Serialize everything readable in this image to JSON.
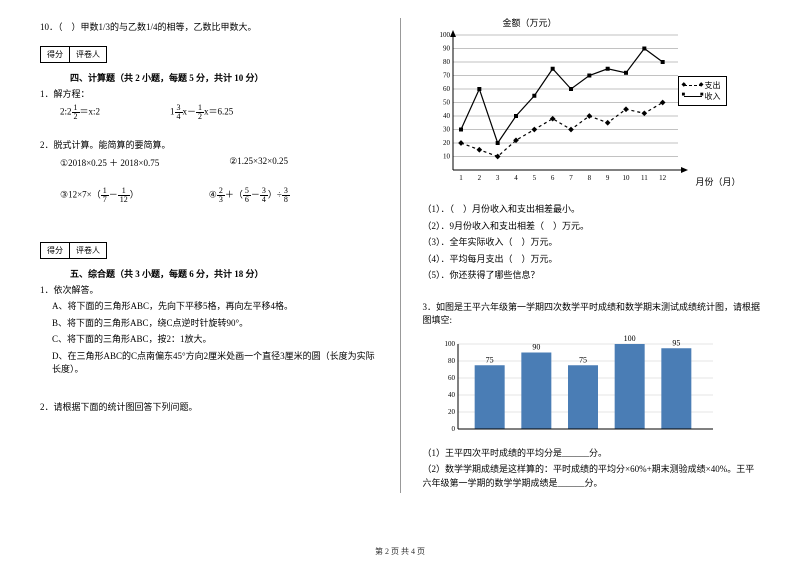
{
  "left": {
    "q10": "10．（　）甲数1/3的与乙数1/4的相等，乙数比甲数大。",
    "score_lbl1": "得分",
    "score_lbl2": "评卷人",
    "sec4_title": "四、计算题（共 2 小题，每题 5 分，共计 10 分）",
    "q4_1": "1．解方程：",
    "eq1a": "2:2",
    "eq1b": "= x:2",
    "eq2": "1　 x -　 x = 6.25",
    "q4_2": "2．脱式计算。能简算的要简算。",
    "calc1": "①2018×0.25 ＋ 2018×0.75",
    "calc2": "②1.25×32×0.25",
    "calc3": "③12×7×（　 -　 ）",
    "calc4": "④　 +（　 -　 ）÷",
    "sec5_title": "五、综合题（共 3 小题，每题 6 分，共计 18 分）",
    "q5_1": "1．依次解答。",
    "q5_1a": "A、将下面的三角形ABC，先向下平移5格，再向左平移4格。",
    "q5_1b": "B、将下面的三角形ABC，绕C点逆时针旋转90°。",
    "q5_1c": "C、将下面的三角形ABC，按2：1放大。",
    "q5_1d": "D、在三角形ABC的C点南偏东45°方向2厘米处画一个直径3厘米的圆（长度为实际长度）。",
    "q5_2": "2．请根据下面的统计图回答下列问题。"
  },
  "right": {
    "chart1": {
      "title_y": "金额（万元）",
      "title_x": "月份（月）",
      "ylim": [
        0,
        100
      ],
      "ytick_step": 10,
      "xticks": [
        "1",
        "2",
        "3",
        "4",
        "5",
        "6",
        "7",
        "8",
        "9",
        "10",
        "11",
        "12"
      ],
      "legend": {
        "a": "支出",
        "b": "收入"
      },
      "series_income": [
        30,
        60,
        20,
        40,
        55,
        75,
        60,
        70,
        75,
        72,
        90,
        80
      ],
      "series_expense": [
        20,
        15,
        10,
        22,
        30,
        38,
        30,
        40,
        35,
        45,
        42,
        50
      ],
      "colors": {
        "line": "#000000",
        "grid": "#666666",
        "bg": "#ffffff"
      }
    },
    "q_list": {
      "l1": "（1）．（　）月份收入和支出相差最小。",
      "l2": "（2）．9月份收入和支出相差（　）万元。",
      "l3": "（3）．全年实际收入（　）万元。",
      "l4": "（4）．平均每月支出（　）万元。",
      "l5": "（5）．你还获得了哪些信息？"
    },
    "q3_intro": "3．如图是王平六年级第一学期四次数学平时成绩和数学期末测试成绩统计图，请根据图填空:",
    "chart2": {
      "type": "bar",
      "ylim": [
        0,
        100
      ],
      "ytick_step": 20,
      "categories": [
        "",
        "",
        "",
        "",
        ""
      ],
      "values": [
        75,
        90,
        75,
        100,
        95
      ],
      "labels": [
        "75",
        "90",
        "75",
        "100",
        "95"
      ],
      "bar_color": "#4a7db5",
      "grid_color": "#cccccc",
      "bg": "#ffffff"
    },
    "q3_a": "（1）王平四次平时成绩的平均分是______分。",
    "q3_b": "（2）数学学期成绩是这样算的：平时成绩的平均分×60%+期末测验成绩×40%。王平六年级第一学期的数学学期成绩是______分。"
  },
  "footer": "第 2 页 共 4 页"
}
